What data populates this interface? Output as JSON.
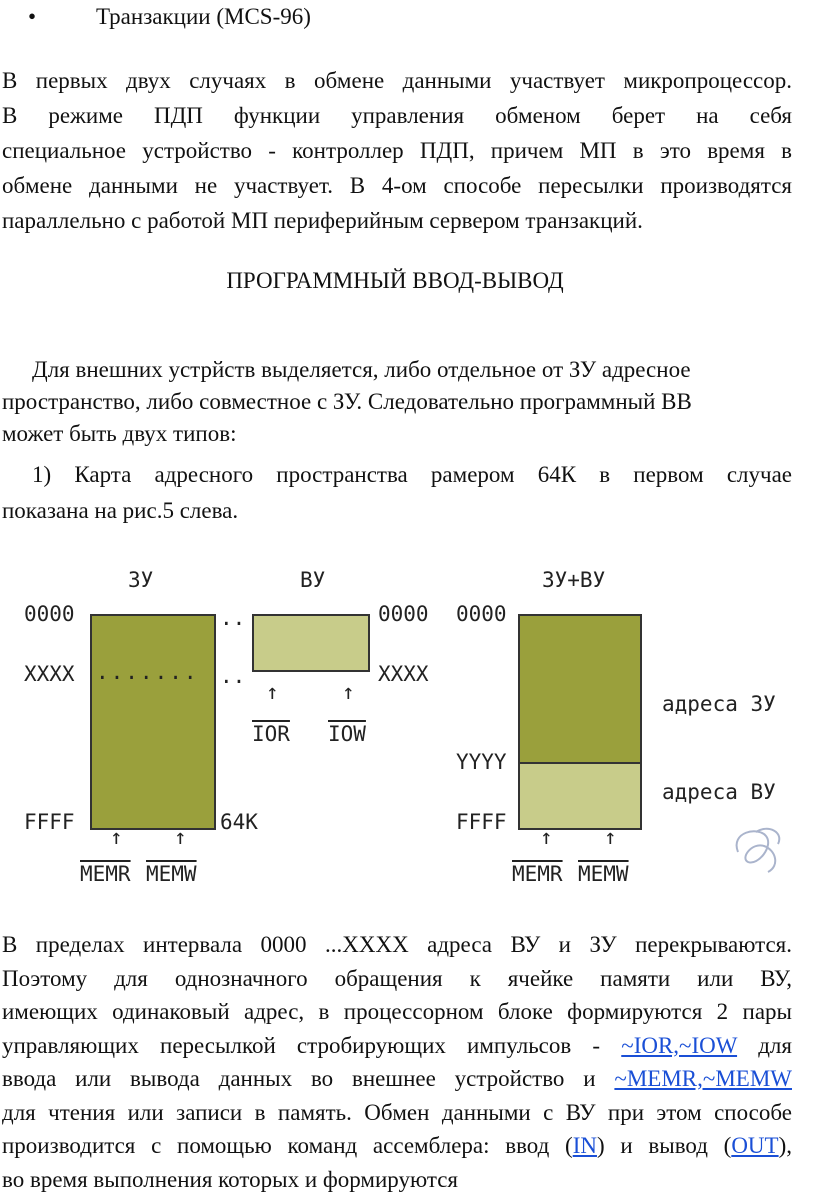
{
  "bullet_item": {
    "symbol": "•",
    "text": "Транзакции (MCS-96)"
  },
  "para1": [
    "В первых двух случаях в обмене данными участвует микропроцессор.",
    "В режиме ПДП функции управления обменом берет на себя",
    "специальное устройство - контроллер ПДП, причем МП в это время в",
    "обмене данными не участвует. В 4-ом способе пересылки производятся",
    "параллельно с работой МП периферийным сервером транзакций."
  ],
  "heading": "ПРОГРАММНЫЙ ВВОД-ВЫВОД",
  "para2": [
    "Для внешних устрйств выделяется, либо отдельное от ЗУ адресное",
    "пространство, либо совместное с ЗУ. Следовательно программный ВВ",
    "может быть двух типов:"
  ],
  "para3": [
    "1) Карта адресного пространства рамером 64К в первом случае",
    "показана на рис.5 слева."
  ],
  "figure": {
    "zu_label": "ЗУ",
    "vu_label": "ВУ",
    "zuvu_label": "ЗУ+ВУ",
    "addr_0000": "0000",
    "addr_xxxx": "XXXX",
    "addr_ffff": "FFFF",
    "addr_yyyy": "YYYY",
    "size_64k": "64K",
    "dots_long": ".......",
    "dots_short": "..",
    "arrow": "↑",
    "ior": "IOR",
    "iow": "IOW",
    "memr": "MEMR",
    "memw": "MEMW",
    "legend_zu": "адреса ЗУ",
    "legend_vu": "адреса ВУ",
    "colors": {
      "dark": "#9aa03c",
      "light": "#c8cc8a"
    }
  },
  "para4": {
    "l1": "В пределах интервала 0000 ...XXXX адреса ВУ и ЗУ перекрываются.",
    "l2": "Поэтому для однозначного обращения к ячейке памяти или ВУ,",
    "l3": "имеющих одинаковый адрес, в процессорном блоке формируются 2 пары",
    "l4_pre": "управляющих пересылкой стробирующих импульсов - ",
    "l4_link": "~IOR,~IOW",
    "l4_post": " для",
    "l5_pre": "ввода или вывода данных во внешнее устройство и ",
    "l5_link": "~MEMR,~MEMW",
    "l6": "для чтения или записи в память. Обмен данными с ВУ при этом способе",
    "l7_pre": "производится с помощью команд ассемблера:  ввод (",
    "l7_link1": "IN",
    "l7_mid": ") и вывод (",
    "l7_link2": "OUT",
    "l7_post": "),",
    "l8": "во время выполнения которых и формируются"
  }
}
